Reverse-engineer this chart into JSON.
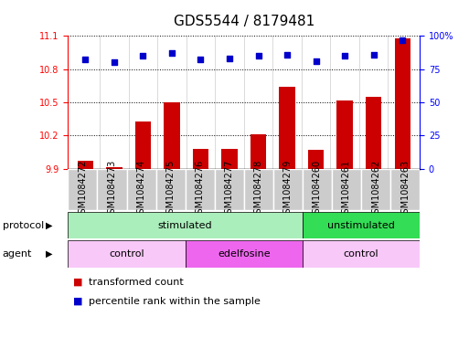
{
  "title": "GDS5544 / 8179481",
  "samples": [
    "GSM1084272",
    "GSM1084273",
    "GSM1084274",
    "GSM1084275",
    "GSM1084276",
    "GSM1084277",
    "GSM1084278",
    "GSM1084279",
    "GSM1084260",
    "GSM1084261",
    "GSM1084262",
    "GSM1084263"
  ],
  "transformed_count": [
    9.97,
    9.91,
    10.33,
    10.5,
    10.08,
    10.08,
    10.21,
    10.64,
    10.07,
    10.52,
    10.55,
    11.08
  ],
  "percentile_rank": [
    82,
    80,
    85,
    87,
    82,
    83,
    85,
    86,
    81,
    85,
    86,
    97
  ],
  "ylim_left": [
    9.9,
    11.1
  ],
  "ylim_right": [
    0,
    100
  ],
  "yticks_left": [
    9.9,
    10.2,
    10.5,
    10.8,
    11.1
  ],
  "yticks_right": [
    0,
    25,
    50,
    75,
    100
  ],
  "bar_color": "#cc0000",
  "dot_color": "#0000cc",
  "protocol_groups": [
    {
      "label": "stimulated",
      "start": 0,
      "end": 7,
      "color": "#aaeebb"
    },
    {
      "label": "unstimulated",
      "start": 8,
      "end": 11,
      "color": "#33dd55"
    }
  ],
  "agent_groups": [
    {
      "label": "control",
      "start": 0,
      "end": 3,
      "color": "#f8c8f8"
    },
    {
      "label": "edelfosine",
      "start": 4,
      "end": 7,
      "color": "#ee66ee"
    },
    {
      "label": "control",
      "start": 8,
      "end": 11,
      "color": "#f8c8f8"
    }
  ],
  "protocol_label": "protocol",
  "agent_label": "agent",
  "legend_bar_label": "transformed count",
  "legend_dot_label": "percentile rank within the sample",
  "title_fontsize": 11,
  "tick_fontsize": 7,
  "label_fontsize": 8,
  "annotation_fontsize": 8,
  "sample_bg_color": "#cccccc",
  "sample_border_color": "#ffffff"
}
